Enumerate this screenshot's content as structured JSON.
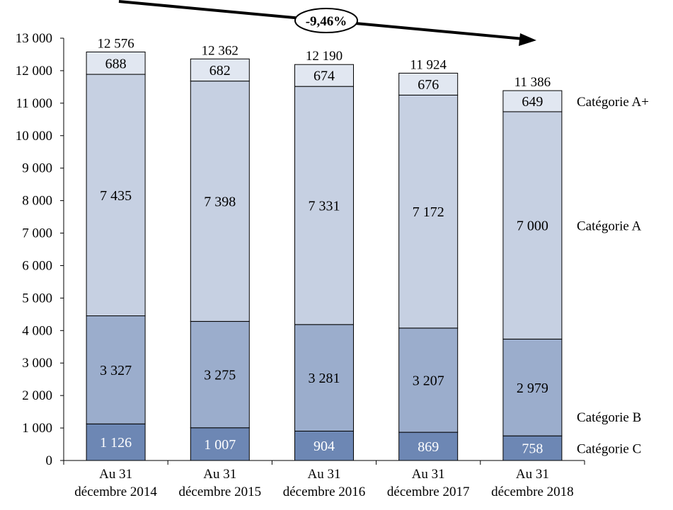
{
  "chart_data": {
    "type": "bar",
    "stacked": true,
    "categories": [
      [
        "Au 31",
        "décembre 2014"
      ],
      [
        "Au 31",
        "décembre 2015"
      ],
      [
        "Au 31",
        "décembre 2016"
      ],
      [
        "Au 31",
        "décembre 2017"
      ],
      [
        "Au 31",
        "décembre 2018"
      ]
    ],
    "series": [
      {
        "name": "Catégorie C",
        "values": [
          1126,
          1007,
          904,
          869,
          758
        ],
        "labels": [
          "1 126",
          "1 007",
          "904",
          "869",
          "758"
        ],
        "color": "#6d87b4",
        "label_color": "#ffffff"
      },
      {
        "name": "Catégorie B",
        "values": [
          3327,
          3275,
          3281,
          3207,
          2979
        ],
        "labels": [
          "3 327",
          "3 275",
          "3 281",
          "3 207",
          "2 979"
        ],
        "color": "#9badcc",
        "label_color": "#000000"
      },
      {
        "name": "Catégorie A",
        "values": [
          7435,
          7398,
          7331,
          7172,
          7000
        ],
        "labels": [
          "7 435",
          "7 398",
          "7 331",
          "7 172",
          "7 000"
        ],
        "color": "#c6d0e2",
        "label_color": "#000000"
      },
      {
        "name": "Catégorie A+",
        "values": [
          688,
          682,
          674,
          676,
          649
        ],
        "labels": [
          "688",
          "682",
          "674",
          "676",
          "649"
        ],
        "color": "#e1e7f1",
        "label_color": "#000000"
      }
    ],
    "totals": [
      12576,
      12362,
      12190,
      11924,
      11386
    ],
    "total_labels": [
      "12 576",
      "12 362",
      "12 190",
      "11 924",
      "11 386"
    ],
    "ylim": [
      0,
      13000
    ],
    "yticks": [
      0,
      1000,
      2000,
      3000,
      4000,
      5000,
      6000,
      7000,
      8000,
      9000,
      10000,
      11000,
      12000,
      13000
    ],
    "ytick_labels": [
      "0",
      "1 000",
      "2 000",
      "3 000",
      "4 000",
      "5 000",
      "6 000",
      "7 000",
      "8 000",
      "9 000",
      "10 000",
      "11 000",
      "12 000",
      "13 000"
    ],
    "legend_position": "right, beside last bar",
    "grid": false,
    "annotation": {
      "text": "-9,46%",
      "kind": "trend-arrow"
    }
  }
}
